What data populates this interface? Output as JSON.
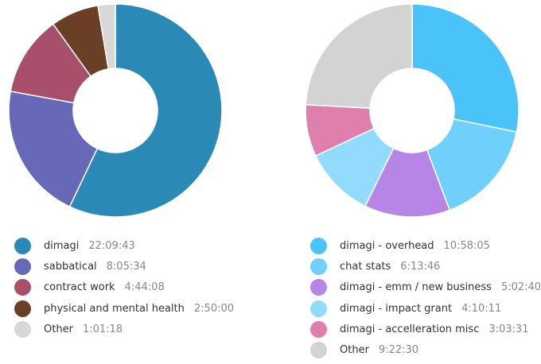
{
  "chart_data": [
    {
      "type": "pie",
      "donut": true,
      "legend_position": "bottom",
      "series": [
        {
          "name": "dimagi",
          "duration": "22:09:43",
          "value": 79783,
          "color": "#2a8ab5"
        },
        {
          "name": "sabbatical",
          "duration": "8:05:34",
          "value": 29134,
          "color": "#6868b8"
        },
        {
          "name": "contract work",
          "duration": "4:44:08",
          "value": 17048,
          "color": "#a84f6c"
        },
        {
          "name": "physical and mental health",
          "duration": "2:50:00",
          "value": 10200,
          "color": "#6b3f26"
        },
        {
          "name": "Other",
          "duration": "1:01:18",
          "value": 3678,
          "color": "#d8d8d8"
        }
      ]
    },
    {
      "type": "pie",
      "donut": true,
      "legend_position": "bottom",
      "series": [
        {
          "name": "dimagi - overhead",
          "duration": "10:58:05",
          "value": 39485,
          "color": "#4ac3f8"
        },
        {
          "name": "chat stats",
          "duration": "6:13:46",
          "value": 22426,
          "color": "#6fd1fb"
        },
        {
          "name": "dimagi - emm / new business",
          "duration": "5:02:40",
          "value": 18160,
          "color": "#b785e5"
        },
        {
          "name": "dimagi - impact grant",
          "duration": "4:10:11",
          "value": 15011,
          "color": "#93dbfc"
        },
        {
          "name": "dimagi - accelleration misc",
          "duration": "3:03:31",
          "value": 11011,
          "color": "#df7fae"
        },
        {
          "name": "Other",
          "duration": "9:22:30",
          "value": 33750,
          "color": "#d3d3d3"
        }
      ]
    }
  ]
}
